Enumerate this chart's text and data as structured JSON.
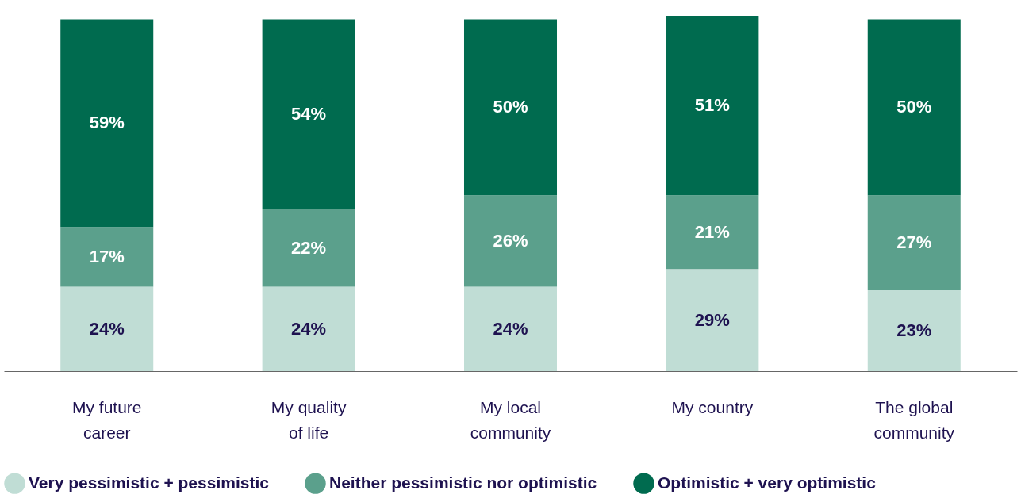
{
  "chart_data": {
    "type": "bar",
    "stacked": true,
    "categories": [
      "My future career",
      "My quality of life",
      "My local community",
      "My country",
      "The global community"
    ],
    "series": [
      {
        "name": "Very pessimistic + pessimistic",
        "color": "#c0ddd5",
        "values": [
          24,
          24,
          24,
          29,
          23
        ],
        "value_labels": [
          "24%",
          "24%",
          "24%",
          "29%",
          "23%"
        ]
      },
      {
        "name": "Neither pessimistic nor optimistic",
        "color": "#5ba08c",
        "values": [
          17,
          22,
          26,
          21,
          27
        ],
        "value_labels": [
          "17%",
          "22%",
          "26%",
          "21%",
          "27%"
        ]
      },
      {
        "name": "Optimistic + very optimistic",
        "color": "#006b4f",
        "values": [
          59,
          54,
          50,
          51,
          50
        ],
        "value_labels": [
          "59%",
          "54%",
          "50%",
          "51%",
          "50%"
        ]
      }
    ],
    "ylim": [
      0,
      101
    ],
    "tick_labels": "x",
    "legend": "bottom",
    "grid": false
  }
}
